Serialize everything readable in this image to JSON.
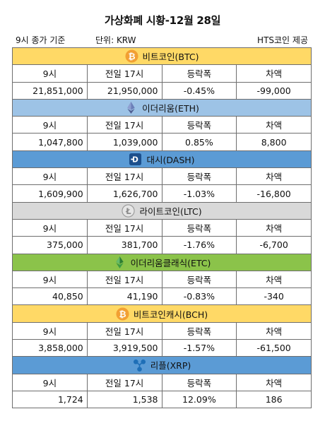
{
  "title": "가상화폐 시황-12월 28일",
  "subheader": {
    "left": "9시 종가 기준",
    "unit": "단위: KRW",
    "right": "HTS코인 제공"
  },
  "columns": [
    "9시",
    "전일 17시",
    "등락폭",
    "차액"
  ],
  "coins": [
    {
      "name": "비트코인(BTC)",
      "icon": "bitcoin-icon",
      "color": "#ffd966",
      "values": [
        "21,851,000",
        "21,950,000",
        "-0.45%",
        "-99,000"
      ]
    },
    {
      "name": "이더리움(ETH)",
      "icon": "ethereum-icon",
      "color": "#9dc3e6",
      "values": [
        "1,047,800",
        "1,039,000",
        "0.85%",
        "8,800"
      ]
    },
    {
      "name": "대시(DASH)",
      "icon": "dash-icon",
      "color": "#5b9bd5",
      "values": [
        "1,609,900",
        "1,626,700",
        "-1.03%",
        "-16,800"
      ]
    },
    {
      "name": "라이트코인(LTC)",
      "icon": "litecoin-icon",
      "color": "#d9d9d9",
      "values": [
        "375,000",
        "381,700",
        "-1.76%",
        "-6,700"
      ]
    },
    {
      "name": "이더리움클래식(ETC)",
      "icon": "ethereum-classic-icon",
      "color": "#8bc34a",
      "values": [
        "40,850",
        "41,190",
        "-0.83%",
        "-340"
      ]
    },
    {
      "name": "비트코인캐시(BCH)",
      "icon": "bitcoin-cash-icon",
      "color": "#ffd966",
      "values": [
        "3,858,000",
        "3,919,500",
        "-1.57%",
        "-61,500"
      ]
    },
    {
      "name": "리플(XRP)",
      "icon": "ripple-icon",
      "color": "#5b9bd5",
      "values": [
        "1,724",
        "1,538",
        "12.09%",
        "186"
      ]
    }
  ]
}
